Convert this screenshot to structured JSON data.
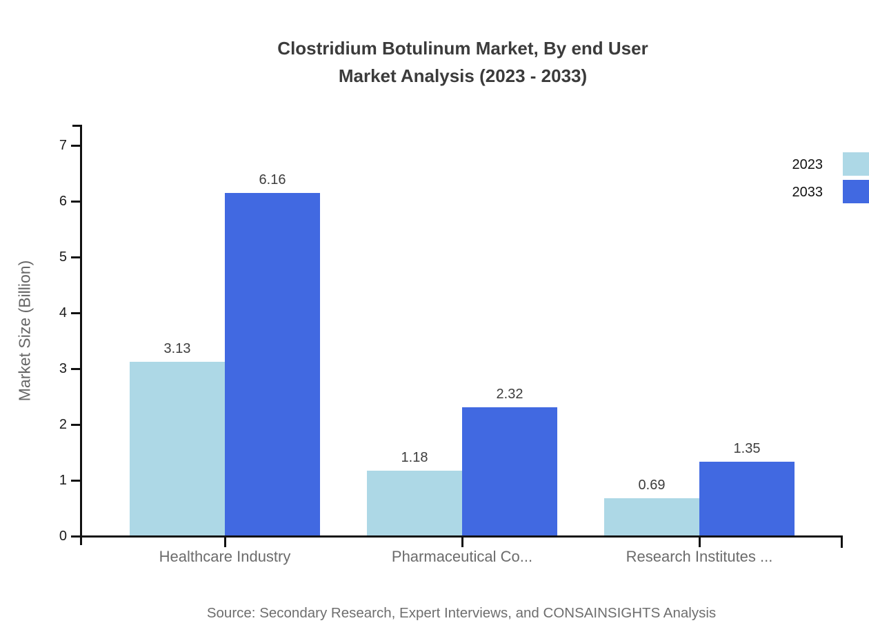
{
  "chart_data": {
    "type": "bar",
    "title": "Clostridium Botulinum Market, By end User Market Analysis (2023 - 2033)",
    "title_lines": [
      "Clostridium Botulinum Market, By end User",
      "Market Analysis (2023 - 2033)"
    ],
    "categories": [
      "Healthcare Industry",
      "Pharmaceutical Co...",
      "Research Institutes ..."
    ],
    "series": [
      {
        "name": "2023",
        "color": "#ADD8E6",
        "values": [
          3.13,
          1.18,
          0.69
        ]
      },
      {
        "name": "2033",
        "color": "#4169E1",
        "values": [
          6.16,
          2.32,
          1.35
        ]
      }
    ],
    "value_labels": [
      "3.13",
      "6.16",
      "1.18",
      "2.32",
      "0.69",
      "1.35"
    ],
    "xlabel": "",
    "ylabel": "Market Size (Billion)",
    "ylim": [
      0,
      7
    ],
    "yticks": [
      0,
      1,
      2,
      3,
      4,
      5,
      6,
      7
    ],
    "grid": false,
    "legend_position": "top-right",
    "source": "Source: Secondary Research, Expert Interviews, and CONSAINSIGHTS Analysis",
    "colors": {
      "background": "#ffffff",
      "axis": "#111111",
      "title_text": "#3b3b3b",
      "value_text": "#3d3d3d",
      "category_text": "#6b6b6b",
      "source_text": "#6e6e6e"
    }
  }
}
